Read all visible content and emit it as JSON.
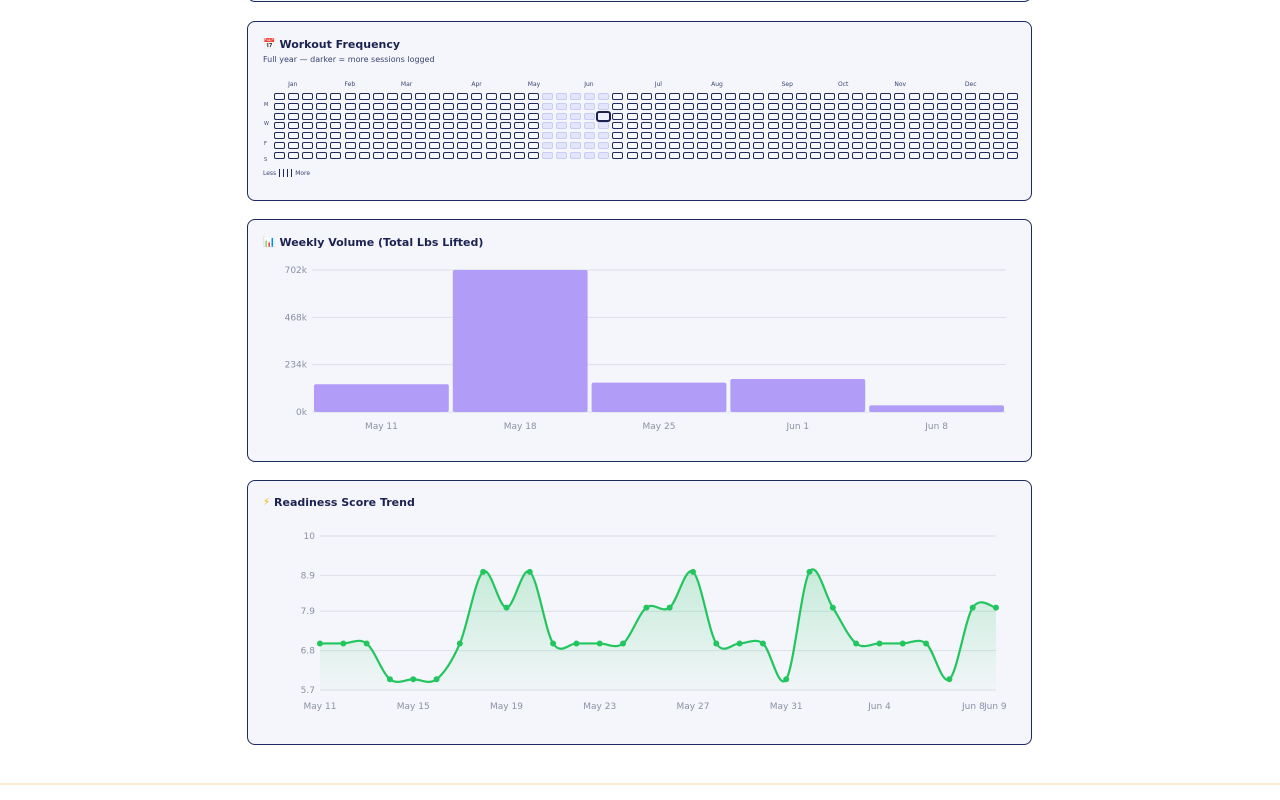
{
  "frequency": {
    "icon": "calendar-icon",
    "title": "Workout Frequency",
    "subtitle": "Full year — darker = more sessions logged",
    "months": [
      "Jan",
      "Feb",
      "Mar",
      "Apr",
      "May",
      "Jun",
      "Jul",
      "Aug",
      "Sep",
      "Oct",
      "Nov",
      "Dec"
    ],
    "day_labels": [
      "M",
      "W",
      "F",
      "S"
    ],
    "legend_less": "Less",
    "legend_more": "More"
  },
  "volume": {
    "icon": "bar-chart-icon",
    "title": "Weekly Volume (Total Lbs Lifted)",
    "chart_data": {
      "type": "bar",
      "categories": [
        "May 11",
        "May 18",
        "May 25",
        "Jun 1",
        "Jun 8"
      ],
      "values": [
        137000,
        702000,
        145000,
        163000,
        33000
      ],
      "ylim": [
        0,
        702000
      ],
      "yticks": [
        0,
        234000,
        468000,
        702000
      ],
      "ytick_labels": [
        "0k",
        "234k",
        "468k",
        "702k"
      ],
      "bar_color": "#b19cf7",
      "grid": true
    }
  },
  "readiness": {
    "icon": "lightning-icon",
    "title": "Readiness Score Trend",
    "chart_data": {
      "type": "area",
      "x": [
        "May 11",
        "May 12",
        "May 13",
        "May 14",
        "May 15",
        "May 16",
        "May 17",
        "May 18",
        "May 19",
        "May 20",
        "May 21",
        "May 22",
        "May 23",
        "May 24",
        "May 25",
        "May 26",
        "May 27",
        "May 28",
        "May 29",
        "May 30",
        "May 31",
        "Jun 1",
        "Jun 2",
        "Jun 3",
        "Jun 4",
        "Jun 5",
        "Jun 6",
        "Jun 7",
        "Jun 8",
        "Jun 9"
      ],
      "values": [
        7.0,
        7.0,
        7.0,
        6.0,
        6.0,
        6.0,
        7.0,
        9.0,
        8.0,
        9.0,
        7.0,
        7.0,
        7.0,
        7.0,
        8.0,
        8.0,
        9.0,
        7.0,
        7.0,
        7.0,
        6.0,
        9.0,
        8.0,
        7.0,
        7.0,
        7.0,
        7.0,
        6.0,
        8.0,
        8.0
      ],
      "xtick_labels": [
        "May 11",
        "May 15",
        "May 19",
        "May 23",
        "May 27",
        "May 31",
        "Jun 4",
        "Jun 8",
        "Jun 9"
      ],
      "ylim": [
        5.7,
        10
      ],
      "yticks": [
        5.7,
        6.8,
        7.9,
        8.9,
        10
      ],
      "ytick_labels": [
        "5.7",
        "6.8",
        "7.9",
        "8.9",
        "10"
      ],
      "line_color": "#22c55e",
      "grid": true
    }
  }
}
